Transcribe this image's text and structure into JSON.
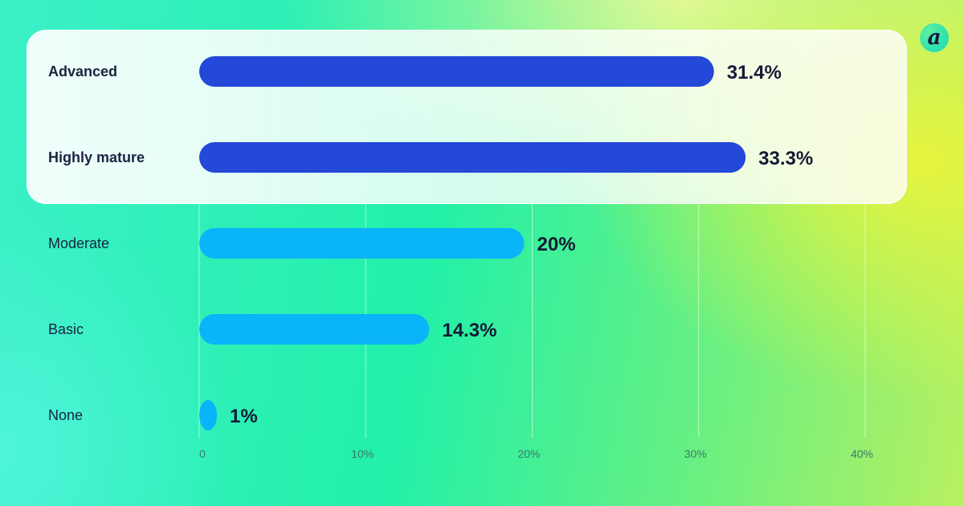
{
  "chart_data": {
    "type": "bar",
    "orientation": "horizontal",
    "categories": [
      "Advanced",
      "Highly mature",
      "Moderate",
      "Basic",
      "None"
    ],
    "values": [
      31.4,
      33.3,
      20,
      14.3,
      1
    ],
    "value_labels": [
      "31.4%",
      "33.3%",
      "20%",
      "14.3%",
      "1%"
    ],
    "highlighted": [
      true,
      true,
      false,
      false,
      false
    ],
    "xlim": [
      0,
      40
    ],
    "xticks": [
      0,
      10,
      20,
      30,
      40
    ],
    "xtick_labels": [
      "0",
      "10%",
      "20%",
      "30%",
      "40%"
    ],
    "grid": true,
    "colors": {
      "highlight": "#2448d8",
      "normal": "#0ab4f8"
    }
  },
  "logo": {
    "letter": "a"
  }
}
